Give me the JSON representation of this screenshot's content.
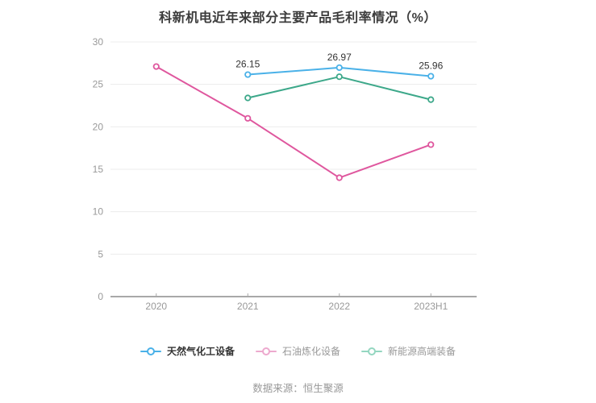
{
  "title": "科新机电近年来部分主要产品毛利率情况（%）",
  "source": "数据来源：恒生聚源",
  "colors": {
    "title_text": "#3c3c3c",
    "axis_line": "#a8a8a8",
    "gridline": "#ececec",
    "tick_label": "#999999",
    "data_label": "#333333",
    "background": "#ffffff"
  },
  "chart_data": {
    "type": "line",
    "categories": [
      "2020",
      "2021",
      "2022",
      "2023H1"
    ],
    "series": [
      {
        "name": "天然气化工设备",
        "color": "#4ab1e8",
        "legend_marker_color": "#4ab1e8",
        "legend_text_color": "#333333",
        "legend_bold": true,
        "values": [
          null,
          26.15,
          26.97,
          25.96
        ],
        "show_labels": true,
        "labels": [
          null,
          "26.15",
          "26.97",
          "25.96"
        ]
      },
      {
        "name": "石油炼化设备",
        "color": "#df579e",
        "legend_marker_color": "#eda9ce",
        "legend_text_color": "#999999",
        "legend_bold": false,
        "values": [
          27.1,
          21.0,
          14.0,
          17.9
        ],
        "show_labels": false,
        "labels": null
      },
      {
        "name": "新能源高端装备",
        "color": "#3da88a",
        "legend_marker_color": "#94d6c0",
        "legend_text_color": "#999999",
        "legend_bold": false,
        "values": [
          null,
          23.4,
          25.9,
          23.2
        ],
        "show_labels": false,
        "labels": null
      }
    ],
    "title": "科新机电近年来部分主要产品毛利率情况（%）",
    "xlabel": "",
    "ylabel": "",
    "ylim": [
      0,
      30
    ],
    "yticks": [
      0,
      5,
      10,
      15,
      20,
      25,
      30
    ],
    "grid": true,
    "legend_position": "bottom"
  }
}
